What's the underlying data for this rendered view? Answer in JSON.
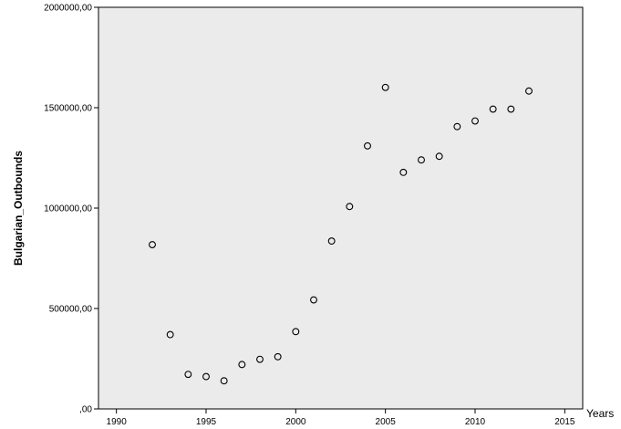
{
  "chart_data": {
    "type": "scatter",
    "xlabel": "Years",
    "ylabel": "Bulgarian_Outbounds",
    "xlim": [
      1989,
      2016
    ],
    "ylim": [
      0,
      2000000
    ],
    "x_ticks": [
      1990,
      1995,
      2000,
      2005,
      2010,
      2015
    ],
    "x_tick_labels": [
      "1990",
      "1995",
      "2000",
      "2005",
      "2010",
      "2015"
    ],
    "y_ticks": [
      0,
      500000,
      1000000,
      1500000,
      2000000
    ],
    "y_tick_labels": [
      ",00",
      "500000,00",
      "1000000,00",
      "1500000,00",
      "2000000,00"
    ],
    "grid": false,
    "plot_background": "#ebebeb",
    "marker_color": "#000000",
    "points": [
      {
        "x": 1992,
        "y": 818000
      },
      {
        "x": 1993,
        "y": 370000
      },
      {
        "x": 1994,
        "y": 172000
      },
      {
        "x": 1995,
        "y": 161000
      },
      {
        "x": 1996,
        "y": 140000
      },
      {
        "x": 1997,
        "y": 221000
      },
      {
        "x": 1998,
        "y": 247000
      },
      {
        "x": 1999,
        "y": 260000
      },
      {
        "x": 2000,
        "y": 385000
      },
      {
        "x": 2001,
        "y": 543000
      },
      {
        "x": 2002,
        "y": 836000
      },
      {
        "x": 2003,
        "y": 1008000
      },
      {
        "x": 2004,
        "y": 1310000
      },
      {
        "x": 2005,
        "y": 1601000
      },
      {
        "x": 2006,
        "y": 1178000
      },
      {
        "x": 2007,
        "y": 1240000
      },
      {
        "x": 2008,
        "y": 1258000
      },
      {
        "x": 2009,
        "y": 1406000
      },
      {
        "x": 2010,
        "y": 1434000
      },
      {
        "x": 2011,
        "y": 1493000
      },
      {
        "x": 2012,
        "y": 1493000
      },
      {
        "x": 2013,
        "y": 1583000
      }
    ]
  }
}
